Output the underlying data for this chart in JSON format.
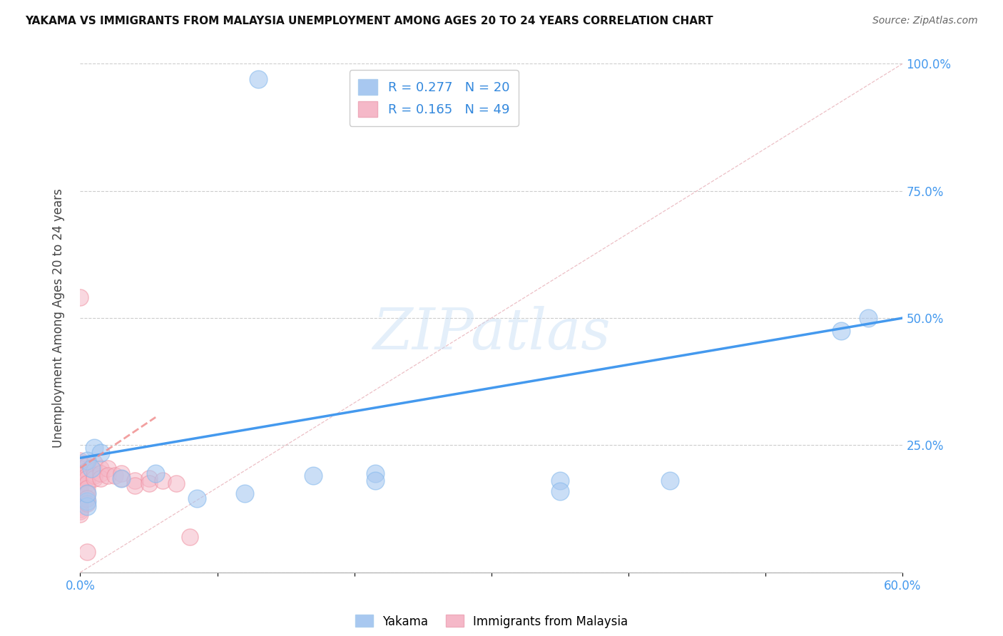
{
  "title": "YAKAMA VS IMMIGRANTS FROM MALAYSIA UNEMPLOYMENT AMONG AGES 20 TO 24 YEARS CORRELATION CHART",
  "source": "Source: ZipAtlas.com",
  "ylabel": "Unemployment Among Ages 20 to 24 years",
  "xlim": [
    0.0,
    0.6
  ],
  "ylim": [
    0.0,
    1.0
  ],
  "xticks": [
    0.0,
    0.1,
    0.2,
    0.3,
    0.4,
    0.5,
    0.6
  ],
  "xtick_labels": [
    "0.0%",
    "",
    "",
    "",
    "",
    "",
    "60.0%"
  ],
  "yticks": [
    0.0,
    0.25,
    0.5,
    0.75,
    1.0
  ],
  "ytick_labels_right": [
    "",
    "25.0%",
    "50.0%",
    "75.0%",
    "100.0%"
  ],
  "yakama_R": 0.277,
  "yakama_N": 20,
  "malaysia_R": 0.165,
  "malaysia_N": 49,
  "yakama_color": "#a8c8f0",
  "malaysia_color": "#f5b8c8",
  "trendline_yakama_color": "#4499ee",
  "trendline_malaysia_color": "#f09090",
  "watermark_text": "ZIPatlas",
  "legend_labels": [
    "Yakama",
    "Immigrants from Malaysia"
  ],
  "yakama_points": [
    [
      0.01,
      0.245
    ],
    [
      0.015,
      0.235
    ],
    [
      0.005,
      0.22
    ],
    [
      0.008,
      0.205
    ],
    [
      0.055,
      0.195
    ],
    [
      0.03,
      0.185
    ],
    [
      0.17,
      0.19
    ],
    [
      0.215,
      0.195
    ],
    [
      0.35,
      0.18
    ],
    [
      0.43,
      0.18
    ],
    [
      0.12,
      0.155
    ],
    [
      0.085,
      0.145
    ],
    [
      0.005,
      0.14
    ],
    [
      0.005,
      0.13
    ],
    [
      0.555,
      0.475
    ],
    [
      0.575,
      0.5
    ],
    [
      0.13,
      0.97
    ],
    [
      0.215,
      0.18
    ],
    [
      0.35,
      0.16
    ],
    [
      0.005,
      0.155
    ]
  ],
  "malaysia_points": [
    [
      0.0,
      0.54
    ],
    [
      0.0,
      0.22
    ],
    [
      0.0,
      0.215
    ],
    [
      0.0,
      0.205
    ],
    [
      0.0,
      0.195
    ],
    [
      0.0,
      0.185
    ],
    [
      0.0,
      0.18
    ],
    [
      0.0,
      0.175
    ],
    [
      0.0,
      0.17
    ],
    [
      0.0,
      0.165
    ],
    [
      0.0,
      0.16
    ],
    [
      0.0,
      0.155
    ],
    [
      0.0,
      0.15
    ],
    [
      0.0,
      0.145
    ],
    [
      0.0,
      0.14
    ],
    [
      0.0,
      0.135
    ],
    [
      0.0,
      0.13
    ],
    [
      0.0,
      0.125
    ],
    [
      0.0,
      0.12
    ],
    [
      0.0,
      0.115
    ],
    [
      0.005,
      0.21
    ],
    [
      0.005,
      0.2
    ],
    [
      0.005,
      0.19
    ],
    [
      0.005,
      0.185
    ],
    [
      0.005,
      0.175
    ],
    [
      0.005,
      0.165
    ],
    [
      0.005,
      0.155
    ],
    [
      0.005,
      0.145
    ],
    [
      0.005,
      0.135
    ],
    [
      0.005,
      0.04
    ],
    [
      0.01,
      0.215
    ],
    [
      0.01,
      0.2
    ],
    [
      0.01,
      0.19
    ],
    [
      0.01,
      0.185
    ],
    [
      0.015,
      0.205
    ],
    [
      0.015,
      0.195
    ],
    [
      0.015,
      0.185
    ],
    [
      0.02,
      0.205
    ],
    [
      0.02,
      0.19
    ],
    [
      0.025,
      0.19
    ],
    [
      0.03,
      0.195
    ],
    [
      0.03,
      0.185
    ],
    [
      0.04,
      0.18
    ],
    [
      0.04,
      0.17
    ],
    [
      0.05,
      0.185
    ],
    [
      0.05,
      0.175
    ],
    [
      0.06,
      0.18
    ],
    [
      0.07,
      0.175
    ],
    [
      0.08,
      0.07
    ]
  ],
  "trendline_yakama": [
    [
      0.0,
      0.225
    ],
    [
      0.6,
      0.5
    ]
  ],
  "trendline_malaysia": [
    [
      0.0,
      0.205
    ],
    [
      0.055,
      0.305
    ]
  ],
  "diag_line": [
    [
      0.0,
      0.0
    ],
    [
      0.6,
      1.0
    ]
  ],
  "background_color": "#ffffff",
  "grid_color": "#cccccc",
  "title_fontsize": 11,
  "source_fontsize": 10,
  "tick_color": "#4499ee",
  "ylabel_color": "#444444"
}
